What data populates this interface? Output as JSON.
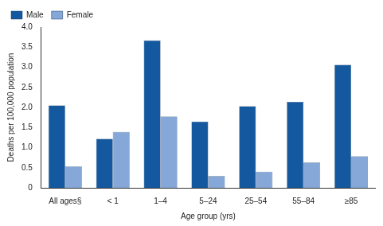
{
  "chart_data": {
    "type": "bar",
    "x_label": "Age group (yrs)",
    "y_label": "Deaths per 100,000 population",
    "categories": [
      "All ages§",
      "< 1",
      "1–4",
      "5–24",
      "25–54",
      "55–84",
      "≥85"
    ],
    "series": [
      {
        "name": "Male",
        "color": "#14599f",
        "values": [
          2.05,
          1.22,
          3.67,
          1.65,
          2.03,
          2.14,
          3.06
        ]
      },
      {
        "name": "Female",
        "color": "#86a8d8",
        "values": [
          0.53,
          1.39,
          1.77,
          0.29,
          0.4,
          0.63,
          0.78
        ]
      }
    ],
    "ylim": [
      0,
      4
    ],
    "yticks": [
      0,
      0.5,
      {
        "value": 1,
        "label": "1.0"
      },
      1.5,
      {
        "value": 2,
        "label": "2.0"
      },
      2.5,
      {
        "value": 3,
        "label": "3.0"
      },
      3.5,
      {
        "value": 4,
        "label": "4.0"
      }
    ],
    "grid": false,
    "legend": "top-left"
  }
}
